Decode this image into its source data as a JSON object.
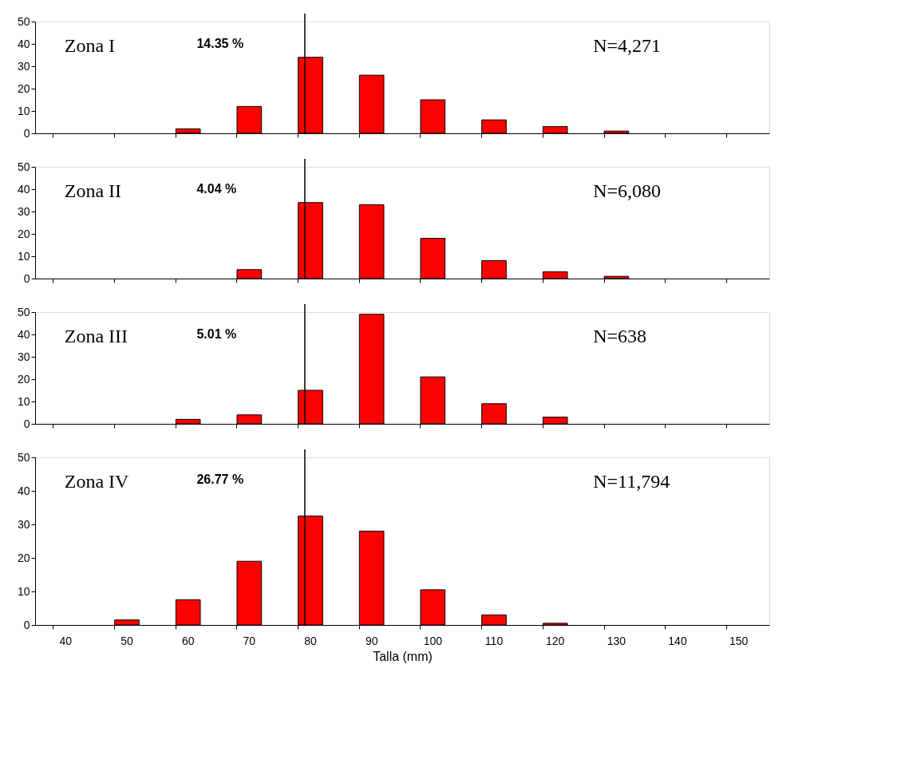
{
  "chart_data": [
    {
      "type": "bar",
      "categories": [
        "40",
        "50",
        "60",
        "70",
        "80",
        "90",
        "100",
        "110",
        "120",
        "130",
        "140",
        "150"
      ],
      "values": [
        null,
        null,
        2,
        12,
        34,
        26,
        15,
        6,
        3,
        1,
        null,
        null
      ],
      "color": "#ff0000",
      "ylim": [
        0,
        50
      ],
      "yticks": [
        0,
        10,
        20,
        30,
        40,
        50
      ],
      "grid": false,
      "tick_labels": "y",
      "annotations": [
        "Zona I",
        "14.35 %",
        "N=4,271"
      ],
      "ref_lines": [
        {
          "axis": "x",
          "value": "80",
          "color": "#000000"
        }
      ]
    },
    {
      "type": "bar",
      "categories": [
        "40",
        "50",
        "60",
        "70",
        "80",
        "90",
        "100",
        "110",
        "120",
        "130",
        "140",
        "150"
      ],
      "values": [
        null,
        null,
        null,
        4,
        34,
        33,
        18,
        8,
        3,
        1,
        null,
        null
      ],
      "color": "#ff0000",
      "ylim": [
        0,
        50
      ],
      "yticks": [
        0,
        10,
        20,
        30,
        40,
        50
      ],
      "grid": false,
      "tick_labels": "y",
      "annotations": [
        "Zona II",
        "4.04 %",
        "N=6,080"
      ],
      "ref_lines": [
        {
          "axis": "x",
          "value": "80",
          "color": "#000000"
        }
      ]
    },
    {
      "type": "bar",
      "categories": [
        "40",
        "50",
        "60",
        "70",
        "80",
        "90",
        "100",
        "110",
        "120",
        "130",
        "140",
        "150"
      ],
      "values": [
        null,
        null,
        2,
        4,
        15,
        49,
        21,
        9,
        3,
        null,
        null,
        null
      ],
      "color": "#ff0000",
      "ylim": [
        0,
        50
      ],
      "yticks": [
        0,
        10,
        20,
        30,
        40,
        50
      ],
      "grid": false,
      "tick_labels": "y",
      "annotations": [
        "Zona III",
        "5.01 %",
        "N=638"
      ],
      "ref_lines": [
        {
          "axis": "x",
          "value": "80",
          "color": "#000000"
        }
      ]
    },
    {
      "type": "bar",
      "categories": [
        "40",
        "50",
        "60",
        "70",
        "80",
        "90",
        "100",
        "110",
        "120",
        "130",
        "140",
        "150"
      ],
      "values": [
        null,
        1.5,
        7.5,
        19,
        32.5,
        28,
        10.5,
        3,
        0.5,
        null,
        null,
        null
      ],
      "color": "#ff0000",
      "ylim": [
        0,
        50
      ],
      "yticks": [
        0,
        10,
        20,
        30,
        40,
        50
      ],
      "grid": false,
      "xlabel": "Talla (mm)",
      "annotations": [
        "Zona IV",
        "26.77 %",
        "N=11,794"
      ],
      "ref_lines": [
        {
          "axis": "x",
          "value": "80",
          "color": "#000000"
        }
      ]
    }
  ]
}
